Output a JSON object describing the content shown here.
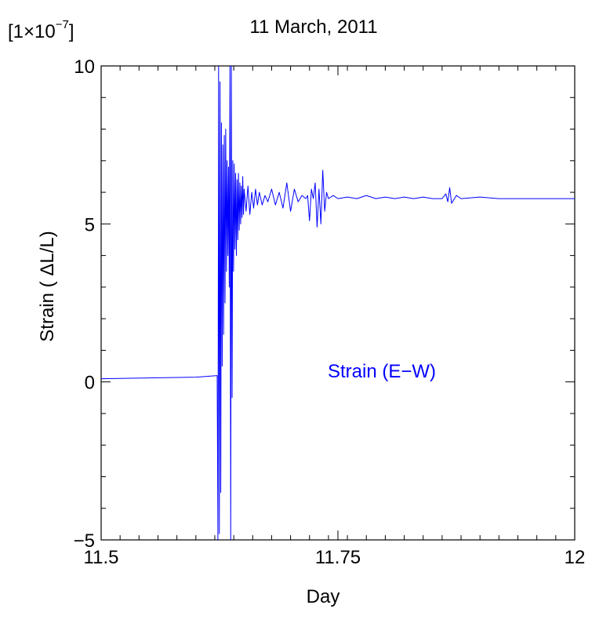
{
  "chart_data": {
    "type": "line",
    "title": "11 March, 2011",
    "xlabel": "Day",
    "ylabel": "Strain ( ΔL/L)",
    "y_multiplier": "[1×10",
    "y_multiplier_exp": "−7",
    "y_multiplier_close": "]",
    "xlim": [
      11.5,
      12.0
    ],
    "ylim": [
      -5,
      10
    ],
    "x_ticks": [
      11.5,
      11.75,
      12.0
    ],
    "x_tick_labels": [
      "11.5",
      "11.75",
      "12"
    ],
    "y_ticks": [
      -5,
      0,
      5,
      10
    ],
    "y_tick_labels": [
      "−5",
      "0",
      "5",
      "10"
    ],
    "grid": false,
    "series_color": "#0000ff",
    "annotation": "Strain (E−W)",
    "series": [
      {
        "name": "Strain (E−W)",
        "x": [
          11.5,
          11.6,
          11.6225,
          11.6233,
          11.624,
          11.6248,
          11.6255,
          11.6263,
          11.627,
          11.6278,
          11.6285,
          11.6293,
          11.63,
          11.6308,
          11.6315,
          11.6323,
          11.633,
          11.6338,
          11.6345,
          11.6353,
          11.636,
          11.6368,
          11.6375,
          11.6383,
          11.639,
          11.6398,
          11.6405,
          11.6413,
          11.642,
          11.6428,
          11.6435,
          11.6443,
          11.645,
          11.6458,
          11.6465,
          11.6473,
          11.648,
          11.6488,
          11.6495,
          11.6503,
          11.651,
          11.653,
          11.655,
          11.657,
          11.659,
          11.661,
          11.663,
          11.665,
          11.667,
          11.67,
          11.673,
          11.676,
          11.68,
          11.684,
          11.688,
          11.692,
          11.696,
          11.7,
          11.704,
          11.708,
          11.712,
          11.716,
          11.718,
          11.72,
          11.722,
          11.724,
          11.726,
          11.728,
          11.73,
          11.732,
          11.734,
          11.736,
          11.738,
          11.74,
          11.745,
          11.75,
          11.76,
          11.77,
          11.78,
          11.79,
          11.8,
          11.81,
          11.82,
          11.83,
          11.84,
          11.85,
          11.86,
          11.864,
          11.866,
          11.868,
          11.87,
          11.875,
          11.88,
          11.9,
          11.92,
          11.94,
          11.96,
          11.98,
          12.0
        ],
        "y": [
          0.1,
          0.15,
          0.2,
          -5.0,
          10.0,
          -4.8,
          9.5,
          -3.5,
          8.2,
          0.5,
          7.5,
          1.5,
          7.8,
          2.5,
          8.0,
          3.5,
          7.0,
          4.0,
          6.8,
          3.0,
          10.0,
          -5.0,
          10.0,
          -0.5,
          7.0,
          3.5,
          6.9,
          4.2,
          6.6,
          4.0,
          6.4,
          4.5,
          6.6,
          4.8,
          6.3,
          5.0,
          6.2,
          5.2,
          6.5,
          5.3,
          6.1,
          5.4,
          6.2,
          5.3,
          6.0,
          5.5,
          6.1,
          5.6,
          6.0,
          5.6,
          5.9,
          5.7,
          6.1,
          5.6,
          6.0,
          5.5,
          6.3,
          5.4,
          6.1,
          5.7,
          5.9,
          5.8,
          5.9,
          5.1,
          6.1,
          5.8,
          6.3,
          4.9,
          6.1,
          5.0,
          6.7,
          5.4,
          6.0,
          5.8,
          5.9,
          5.8,
          5.85,
          5.8,
          5.9,
          5.8,
          5.85,
          5.8,
          5.85,
          5.8,
          5.85,
          5.8,
          5.8,
          5.95,
          5.7,
          6.15,
          5.65,
          5.9,
          5.8,
          5.85,
          5.8,
          5.8,
          5.8,
          5.8,
          5.8
        ]
      }
    ]
  }
}
